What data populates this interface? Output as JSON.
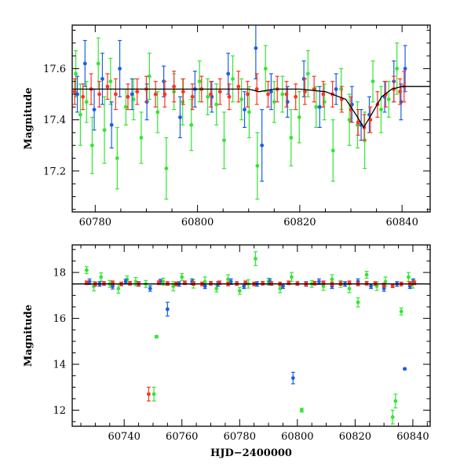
{
  "colors": {
    "g_band": "#33e633",
    "b_band": "#1a5fe6",
    "r_band": "#ff3322",
    "model": "#000000"
  },
  "chart_data": [
    {
      "type": "scatter",
      "name": "top-panel",
      "title": "",
      "xlabel": "",
      "ylabel": "Magnitude",
      "xlim": [
        60775.5,
        60845.5
      ],
      "ylim": [
        17.77,
        17.04
      ],
      "inverted_y": true,
      "xticks": [
        60780,
        60800,
        60820,
        60840
      ],
      "yticks": [
        17.2,
        17.4,
        17.6
      ],
      "xtick_labels": [
        "60780",
        "60800",
        "60820",
        "60840"
      ],
      "ytick_labels": [
        "17.2",
        "17.4",
        "17.6"
      ],
      "grid": false,
      "legend": "none",
      "model_curve": {
        "x": [
          60775.5,
          60790,
          60800,
          60810,
          60812,
          60815,
          60820,
          60825,
          60829,
          60831,
          60832.5,
          60834,
          60836,
          60838,
          60840,
          60845.5
        ],
        "y": [
          17.52,
          17.52,
          17.52,
          17.52,
          17.51,
          17.52,
          17.52,
          17.51,
          17.48,
          17.42,
          17.37,
          17.42,
          17.49,
          17.52,
          17.53,
          17.53
        ]
      },
      "series": [
        {
          "band": "green",
          "x": [
            60776.2,
            60777.1,
            60778.3,
            60779.4,
            60780.6,
            60781.8,
            60783.0,
            60784.3,
            60786.0,
            60787.5,
            60789.0,
            60790.6,
            60792.2,
            60793.9,
            60795.4,
            60797.1,
            60798.8,
            60800.4,
            60802.0,
            60803.7,
            60805.2,
            60806.9,
            60808.6,
            60810.1,
            60811.7,
            60813.3,
            60815.0,
            60816.6,
            60818.3,
            60819.9,
            60821.6,
            60823.2,
            60824.8,
            60826.5,
            60828.1,
            60829.7,
            60831.3,
            60832.7,
            60834.3,
            60835.9,
            60837.4,
            60839.0
          ],
          "y": [
            17.58,
            17.42,
            17.47,
            17.3,
            17.62,
            17.36,
            17.55,
            17.25,
            17.45,
            17.48,
            17.33,
            17.57,
            17.43,
            17.21,
            17.51,
            17.47,
            17.38,
            17.55,
            17.49,
            17.46,
            17.32,
            17.56,
            17.48,
            17.43,
            17.22,
            17.6,
            17.47,
            17.5,
            17.33,
            17.41,
            17.58,
            17.45,
            17.47,
            17.28,
            17.52,
            17.4,
            17.38,
            17.32,
            17.55,
            17.44,
            17.48,
            17.6
          ],
          "err": [
            0.09,
            0.12,
            0.08,
            0.11,
            0.1,
            0.13,
            0.09,
            0.12,
            0.07,
            0.08,
            0.1,
            0.09,
            0.08,
            0.12,
            0.07,
            0.09,
            0.1,
            0.08,
            0.07,
            0.08,
            0.11,
            0.09,
            0.08,
            0.1,
            0.13,
            0.09,
            0.08,
            0.07,
            0.11,
            0.1,
            0.09,
            0.08,
            0.07,
            0.12,
            0.08,
            0.1,
            0.09,
            0.11,
            0.08,
            0.09,
            0.07,
            0.1
          ]
        },
        {
          "band": "blue",
          "x": [
            60776.5,
            60778.0,
            60779.8,
            60781.4,
            60783.2,
            60784.8,
            60787.2,
            60790.1,
            60793.4,
            60796.6,
            60799.5,
            60802.8,
            60806.0,
            60809.2,
            60811.4,
            60812.6,
            60814.4,
            60817.6,
            60820.8,
            60823.9,
            60827.1,
            60830.2,
            60832.0,
            60833.6,
            60836.6,
            60838.4,
            60839.8,
            60840.6
          ],
          "y": [
            17.5,
            17.62,
            17.44,
            17.56,
            17.38,
            17.6,
            17.5,
            17.47,
            17.55,
            17.41,
            17.52,
            17.49,
            17.58,
            17.44,
            17.68,
            17.3,
            17.51,
            17.47,
            17.56,
            17.45,
            17.52,
            17.46,
            17.38,
            17.42,
            17.49,
            17.55,
            17.47,
            17.6
          ],
          "err": [
            0.07,
            0.09,
            0.08,
            0.1,
            0.09,
            0.11,
            0.06,
            0.07,
            0.06,
            0.08,
            0.07,
            0.06,
            0.08,
            0.07,
            0.12,
            0.14,
            0.07,
            0.06,
            0.07,
            0.08,
            0.06,
            0.07,
            0.06,
            0.07,
            0.06,
            0.08,
            0.07,
            0.09
          ]
        },
        {
          "band": "red",
          "x": [
            60776.0,
            60777.6,
            60779.2,
            60780.8,
            60782.4,
            60784.0,
            60786.4,
            60788.2,
            60790.0,
            60791.8,
            60793.6,
            60795.4,
            60797.2,
            60799.0,
            60800.8,
            60802.6,
            60804.4,
            60806.2,
            60808.0,
            60809.8,
            60811.6,
            60813.8,
            60815.6,
            60817.4,
            60819.2,
            60821.0,
            60822.8,
            60824.6,
            60826.4,
            60828.2,
            60830.0,
            60831.4,
            60832.6,
            60833.8,
            60835.2,
            60836.8,
            60838.4,
            60839.6,
            60840.4
          ],
          "y": [
            17.51,
            17.49,
            17.52,
            17.5,
            17.53,
            17.5,
            17.49,
            17.51,
            17.52,
            17.5,
            17.5,
            17.53,
            17.51,
            17.49,
            17.52,
            17.5,
            17.51,
            17.49,
            17.53,
            17.5,
            17.52,
            17.5,
            17.52,
            17.5,
            17.49,
            17.51,
            17.52,
            17.5,
            17.5,
            17.48,
            17.44,
            17.39,
            17.37,
            17.4,
            17.46,
            17.5,
            17.52,
            17.51,
            17.53
          ],
          "err": [
            0.05,
            0.05,
            0.06,
            0.05,
            0.05,
            0.06,
            0.05,
            0.05,
            0.05,
            0.05,
            0.05,
            0.06,
            0.05,
            0.05,
            0.05,
            0.05,
            0.05,
            0.05,
            0.06,
            0.05,
            0.06,
            0.05,
            0.05,
            0.05,
            0.05,
            0.05,
            0.05,
            0.05,
            0.05,
            0.05,
            0.05,
            0.05,
            0.05,
            0.05,
            0.05,
            0.05,
            0.05,
            0.05,
            0.06
          ]
        }
      ]
    },
    {
      "type": "scatter",
      "name": "bottom-panel",
      "title": "",
      "xlabel": "HJD−2400000",
      "ylabel": "Magnitude",
      "xlim": [
        60722,
        60846
      ],
      "ylim": [
        19.2,
        11.3
      ],
      "inverted_y": true,
      "xticks": [
        60740,
        60760,
        60780,
        60800,
        60820,
        60840
      ],
      "yticks": [
        12,
        14,
        16,
        18
      ],
      "xtick_labels": [
        "60740",
        "60760",
        "60780",
        "60800",
        "60820",
        "60840"
      ],
      "ytick_labels": [
        "12",
        "14",
        "16",
        "18"
      ],
      "grid": false,
      "legend": "none",
      "model_curve": {
        "x": [
          60722,
          60846
        ],
        "y": [
          17.5,
          17.5
        ]
      },
      "series": [
        {
          "band": "green",
          "x": [
            60727.0,
            60729.5,
            60732.0,
            60735.0,
            60738.0,
            60741.0,
            60744.0,
            60747.5,
            60750.3,
            60751.2,
            60753.5,
            60757.0,
            60760.0,
            60764.0,
            60768.0,
            60772.0,
            60776.0,
            60780.0,
            60783.0,
            60785.5,
            60790.0,
            60794.0,
            60798.0,
            60801.5,
            60805.0,
            60809.0,
            60812.0,
            60815.0,
            60818.0,
            60821.0,
            60824.0,
            60827.5,
            60830.5,
            60833.0,
            60834.0,
            60836.0,
            60838.5,
            60840.0
          ],
          "y": [
            18.1,
            17.4,
            17.8,
            17.5,
            17.3,
            17.7,
            17.6,
            17.5,
            12.7,
            15.2,
            17.6,
            17.4,
            17.8,
            17.5,
            17.6,
            17.3,
            17.7,
            17.2,
            17.5,
            18.6,
            17.6,
            17.3,
            17.8,
            12.0,
            17.5,
            17.4,
            17.7,
            17.5,
            17.3,
            16.7,
            17.9,
            17.4,
            17.6,
            11.7,
            12.4,
            16.3,
            17.8,
            17.5
          ],
          "err": [
            0.15,
            0.2,
            0.18,
            0.15,
            0.2,
            0.15,
            0.18,
            0.15,
            0.3,
            0.05,
            0.15,
            0.2,
            0.15,
            0.18,
            0.2,
            0.15,
            0.2,
            0.15,
            0.18,
            0.3,
            0.15,
            0.18,
            0.2,
            0.08,
            0.15,
            0.18,
            0.2,
            0.15,
            0.18,
            0.2,
            0.15,
            0.18,
            0.2,
            0.3,
            0.3,
            0.15,
            0.2,
            0.18
          ]
        },
        {
          "band": "blue",
          "x": [
            60728.0,
            60731.5,
            60736.0,
            60740.5,
            60745.0,
            60749.0,
            60752.5,
            60755.0,
            60759.0,
            60763.5,
            60768.0,
            60772.5,
            60777.0,
            60781.5,
            60786.0,
            60790.5,
            60795.0,
            60798.5,
            60803.0,
            60807.5,
            60812.0,
            60816.5,
            60821.0,
            60825.5,
            60830.0,
            60834.5,
            60837.2,
            60839.0,
            60840.2
          ],
          "y": [
            17.6,
            17.5,
            17.4,
            17.6,
            17.5,
            17.3,
            17.6,
            16.4,
            17.5,
            17.6,
            17.4,
            17.5,
            17.6,
            17.4,
            17.5,
            17.6,
            17.4,
            13.4,
            17.5,
            17.6,
            17.4,
            17.5,
            17.6,
            17.4,
            17.3,
            17.5,
            13.8,
            17.4,
            17.6
          ],
          "err": [
            0.12,
            0.1,
            0.12,
            0.1,
            0.1,
            0.12,
            0.1,
            0.3,
            0.1,
            0.12,
            0.1,
            0.1,
            0.12,
            0.1,
            0.1,
            0.12,
            0.1,
            0.25,
            0.1,
            0.12,
            0.1,
            0.1,
            0.12,
            0.1,
            0.12,
            0.1,
            0.03,
            0.1,
            0.12
          ]
        },
        {
          "band": "red",
          "x": [
            60727.0,
            60730.0,
            60733.0,
            60736.0,
            60739.0,
            60742.0,
            60745.0,
            60748.5,
            60752.0,
            60755.0,
            60758.0,
            60761.0,
            60764.0,
            60767.0,
            60770.0,
            60773.0,
            60776.0,
            60779.0,
            60782.0,
            60785.0,
            60788.0,
            60791.0,
            60794.0,
            60797.0,
            60800.0,
            60803.0,
            60806.0,
            60809.0,
            60812.0,
            60815.0,
            60818.0,
            60821.0,
            60824.0,
            60827.0,
            60830.0,
            60833.0,
            60836.0,
            60839.0,
            60840.5
          ],
          "y": [
            17.55,
            17.5,
            17.52,
            17.55,
            17.5,
            17.53,
            17.5,
            12.7,
            17.55,
            17.52,
            17.5,
            17.55,
            17.52,
            17.5,
            17.53,
            17.55,
            17.5,
            17.52,
            17.55,
            17.5,
            17.53,
            17.52,
            17.5,
            17.55,
            17.52,
            17.5,
            17.53,
            17.55,
            17.5,
            17.52,
            17.55,
            17.5,
            17.53,
            17.52,
            17.45,
            17.42,
            17.5,
            17.52,
            17.55
          ],
          "err": [
            0.08,
            0.08,
            0.08,
            0.08,
            0.08,
            0.08,
            0.08,
            0.3,
            0.08,
            0.08,
            0.08,
            0.08,
            0.08,
            0.08,
            0.08,
            0.08,
            0.08,
            0.08,
            0.08,
            0.08,
            0.08,
            0.08,
            0.08,
            0.08,
            0.08,
            0.08,
            0.08,
            0.08,
            0.08,
            0.08,
            0.08,
            0.08,
            0.08,
            0.08,
            0.08,
            0.08,
            0.08,
            0.08,
            0.08
          ]
        }
      ]
    }
  ]
}
